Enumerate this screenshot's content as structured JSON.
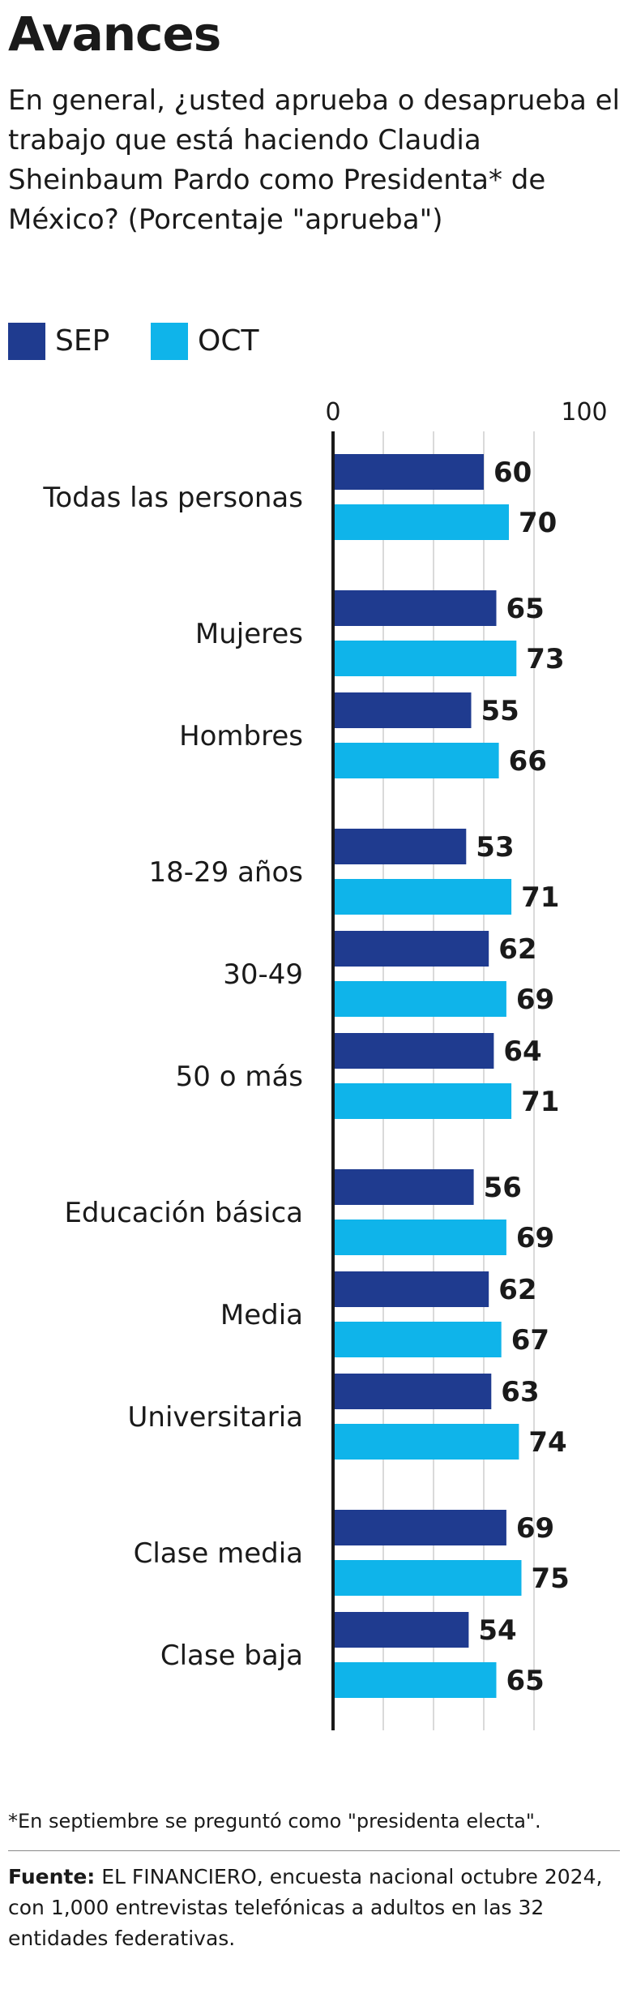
{
  "header": {
    "title": "Avances",
    "question": "En general, ¿usted aprueba o desaprueba el trabajo que está haciendo Claudia Sheinbaum Pardo como Presidenta* de México? (Porcentaje \"aprueba\")"
  },
  "legend": [
    {
      "label": "SEP",
      "color": "#1f3b8f"
    },
    {
      "label": "OCT",
      "color": "#0fb4ea"
    }
  ],
  "chart_data": {
    "type": "bar",
    "orientation": "horizontal",
    "xlim": [
      0,
      100
    ],
    "x_ticks": [
      "0",
      "100"
    ],
    "grid": true,
    "legend_position": "top-left",
    "categories": [
      "Todas las personas",
      "Mujeres",
      "Hombres",
      "18-29 años",
      "30-49",
      "50 o más",
      "Educación básica",
      "Media",
      "Universitaria",
      "Clase media",
      "Clase baja"
    ],
    "groups": [
      [
        0
      ],
      [
        1,
        2
      ],
      [
        3,
        4,
        5
      ],
      [
        6,
        7,
        8
      ],
      [
        9,
        10
      ]
    ],
    "series": [
      {
        "name": "SEP",
        "color": "#1f3b8f",
        "values": [
          60,
          65,
          55,
          53,
          62,
          64,
          56,
          62,
          63,
          69,
          54
        ]
      },
      {
        "name": "OCT",
        "color": "#0fb4ea",
        "values": [
          70,
          73,
          66,
          71,
          69,
          71,
          69,
          67,
          74,
          75,
          65
        ]
      }
    ]
  },
  "footer": {
    "note": "*En septiembre se preguntó como \"presidenta electa\".",
    "source_label": "Fuente:",
    "source_text": "EL FINANCIERO, encuesta nacional octubre 2024, con 1,000 entrevistas telefónicas a adultos en las 32 entidades federativas."
  }
}
